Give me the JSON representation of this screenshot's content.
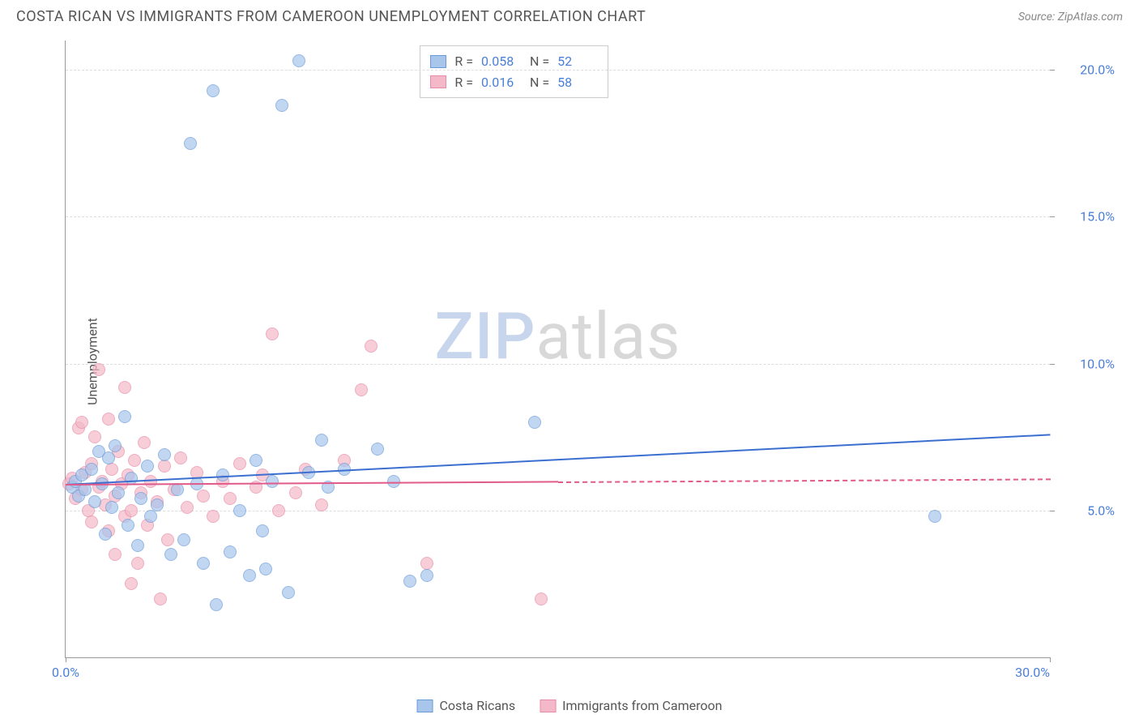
{
  "title": "COSTA RICAN VS IMMIGRANTS FROM CAMEROON UNEMPLOYMENT CORRELATION CHART",
  "source": "Source: ZipAtlas.com",
  "y_axis_label": "Unemployment",
  "watermark": {
    "part1": "ZIP",
    "part2": "atlas"
  },
  "colors": {
    "series1_fill": "#a8c5ec",
    "series1_stroke": "#6a9ad8",
    "series2_fill": "#f4b8c8",
    "series2_stroke": "#e68ba8",
    "trend1": "#3a6fd0",
    "trend2": "#e05a8a",
    "tick_text": "#4a7fd8",
    "grid": "#dddddd",
    "axis": "#999999",
    "watermark_zip": "#c7d6ed",
    "watermark_atlas": "#d8d8d8"
  },
  "xlim": [
    0,
    30
  ],
  "ylim": [
    0,
    21
  ],
  "yticks": [
    {
      "v": 5,
      "label": "5.0%"
    },
    {
      "v": 10,
      "label": "10.0%"
    },
    {
      "v": 15,
      "label": "15.0%"
    },
    {
      "v": 20,
      "label": "20.0%"
    }
  ],
  "xticks": [
    {
      "v": 0,
      "label": "0.0%"
    },
    {
      "v": 30,
      "label": "30.0%",
      "align": "right"
    }
  ],
  "stats": [
    {
      "series": 1,
      "r_label": "R =",
      "r": "0.058",
      "n_label": "N =",
      "n": "52"
    },
    {
      "series": 2,
      "r_label": "R =",
      "r": "0.016",
      "n_label": "N =",
      "n": "58"
    }
  ],
  "legend": [
    {
      "series": 1,
      "label": "Costa Ricans"
    },
    {
      "series": 2,
      "label": "Immigrants from Cameroon"
    }
  ],
  "trend_lines": {
    "series1": {
      "x1": 0,
      "y1": 5.9,
      "x2": 30,
      "y2": 7.6,
      "solid_until_x": 30
    },
    "series2": {
      "x1": 0,
      "y1": 5.9,
      "x2": 30,
      "y2": 6.1,
      "solid_until_x": 15
    }
  },
  "points_series1": [
    {
      "x": 0.2,
      "y": 5.8
    },
    {
      "x": 0.3,
      "y": 6.0
    },
    {
      "x": 0.4,
      "y": 5.5
    },
    {
      "x": 0.5,
      "y": 6.2
    },
    {
      "x": 0.6,
      "y": 5.7
    },
    {
      "x": 0.8,
      "y": 6.4
    },
    {
      "x": 0.9,
      "y": 5.3
    },
    {
      "x": 1.0,
      "y": 7.0
    },
    {
      "x": 1.1,
      "y": 5.9
    },
    {
      "x": 1.2,
      "y": 4.2
    },
    {
      "x": 1.3,
      "y": 6.8
    },
    {
      "x": 1.4,
      "y": 5.1
    },
    {
      "x": 1.5,
      "y": 7.2
    },
    {
      "x": 1.6,
      "y": 5.6
    },
    {
      "x": 1.8,
      "y": 8.2
    },
    {
      "x": 1.9,
      "y": 4.5
    },
    {
      "x": 2.0,
      "y": 6.1
    },
    {
      "x": 2.2,
      "y": 3.8
    },
    {
      "x": 2.3,
      "y": 5.4
    },
    {
      "x": 2.5,
      "y": 6.5
    },
    {
      "x": 2.6,
      "y": 4.8
    },
    {
      "x": 2.8,
      "y": 5.2
    },
    {
      "x": 3.0,
      "y": 6.9
    },
    {
      "x": 3.2,
      "y": 3.5
    },
    {
      "x": 3.4,
      "y": 5.7
    },
    {
      "x": 3.6,
      "y": 4.0
    },
    {
      "x": 3.8,
      "y": 17.5
    },
    {
      "x": 4.0,
      "y": 5.9
    },
    {
      "x": 4.2,
      "y": 3.2
    },
    {
      "x": 4.5,
      "y": 19.3
    },
    {
      "x": 4.6,
      "y": 1.8
    },
    {
      "x": 4.8,
      "y": 6.2
    },
    {
      "x": 5.0,
      "y": 3.6
    },
    {
      "x": 5.3,
      "y": 5.0
    },
    {
      "x": 5.6,
      "y": 2.8
    },
    {
      "x": 5.8,
      "y": 6.7
    },
    {
      "x": 6.0,
      "y": 4.3
    },
    {
      "x": 6.1,
      "y": 3.0
    },
    {
      "x": 6.3,
      "y": 6.0
    },
    {
      "x": 6.6,
      "y": 18.8
    },
    {
      "x": 6.8,
      "y": 2.2
    },
    {
      "x": 7.1,
      "y": 20.3
    },
    {
      "x": 7.4,
      "y": 6.3
    },
    {
      "x": 7.8,
      "y": 7.4
    },
    {
      "x": 8.0,
      "y": 5.8
    },
    {
      "x": 8.5,
      "y": 6.4
    },
    {
      "x": 9.5,
      "y": 7.1
    },
    {
      "x": 10.0,
      "y": 6.0
    },
    {
      "x": 10.5,
      "y": 2.6
    },
    {
      "x": 11.0,
      "y": 2.8
    },
    {
      "x": 14.3,
      "y": 8.0
    },
    {
      "x": 26.5,
      "y": 4.8
    }
  ],
  "points_series2": [
    {
      "x": 0.1,
      "y": 5.9
    },
    {
      "x": 0.2,
      "y": 6.1
    },
    {
      "x": 0.3,
      "y": 5.4
    },
    {
      "x": 0.4,
      "y": 7.8
    },
    {
      "x": 0.5,
      "y": 5.7
    },
    {
      "x": 0.5,
      "y": 8.0
    },
    {
      "x": 0.6,
      "y": 6.3
    },
    {
      "x": 0.7,
      "y": 5.0
    },
    {
      "x": 0.8,
      "y": 6.6
    },
    {
      "x": 0.8,
      "y": 4.6
    },
    {
      "x": 0.9,
      "y": 7.5
    },
    {
      "x": 1.0,
      "y": 5.8
    },
    {
      "x": 1.0,
      "y": 9.8
    },
    {
      "x": 1.1,
      "y": 6.0
    },
    {
      "x": 1.2,
      "y": 5.2
    },
    {
      "x": 1.3,
      "y": 8.1
    },
    {
      "x": 1.3,
      "y": 4.3
    },
    {
      "x": 1.4,
      "y": 6.4
    },
    {
      "x": 1.5,
      "y": 5.5
    },
    {
      "x": 1.5,
      "y": 3.5
    },
    {
      "x": 1.6,
      "y": 7.0
    },
    {
      "x": 1.7,
      "y": 5.9
    },
    {
      "x": 1.8,
      "y": 9.2
    },
    {
      "x": 1.8,
      "y": 4.8
    },
    {
      "x": 1.9,
      "y": 6.2
    },
    {
      "x": 2.0,
      "y": 5.0
    },
    {
      "x": 2.0,
      "y": 2.5
    },
    {
      "x": 2.1,
      "y": 6.7
    },
    {
      "x": 2.2,
      "y": 3.2
    },
    {
      "x": 2.3,
      "y": 5.6
    },
    {
      "x": 2.4,
      "y": 7.3
    },
    {
      "x": 2.5,
      "y": 4.5
    },
    {
      "x": 2.6,
      "y": 6.0
    },
    {
      "x": 2.8,
      "y": 5.3
    },
    {
      "x": 2.9,
      "y": 2.0
    },
    {
      "x": 3.0,
      "y": 6.5
    },
    {
      "x": 3.1,
      "y": 4.0
    },
    {
      "x": 3.3,
      "y": 5.7
    },
    {
      "x": 3.5,
      "y": 6.8
    },
    {
      "x": 3.7,
      "y": 5.1
    },
    {
      "x": 4.0,
      "y": 6.3
    },
    {
      "x": 4.2,
      "y": 5.5
    },
    {
      "x": 4.5,
      "y": 4.8
    },
    {
      "x": 4.8,
      "y": 6.0
    },
    {
      "x": 5.0,
      "y": 5.4
    },
    {
      "x": 5.3,
      "y": 6.6
    },
    {
      "x": 5.8,
      "y": 5.8
    },
    {
      "x": 6.0,
      "y": 6.2
    },
    {
      "x": 6.3,
      "y": 11.0
    },
    {
      "x": 6.5,
      "y": 5.0
    },
    {
      "x": 7.0,
      "y": 5.6
    },
    {
      "x": 7.3,
      "y": 6.4
    },
    {
      "x": 7.8,
      "y": 5.2
    },
    {
      "x": 8.5,
      "y": 6.7
    },
    {
      "x": 9.0,
      "y": 9.1
    },
    {
      "x": 9.3,
      "y": 10.6
    },
    {
      "x": 11.0,
      "y": 3.2
    },
    {
      "x": 14.5,
      "y": 2.0
    }
  ]
}
